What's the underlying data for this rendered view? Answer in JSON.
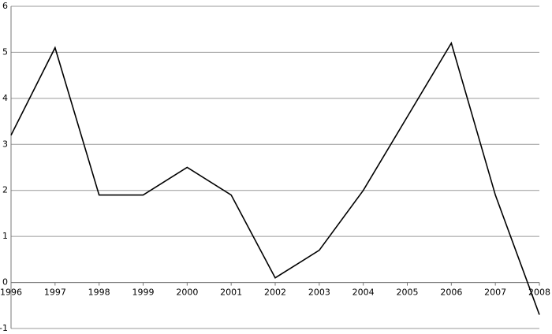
{
  "chart_data": {
    "type": "line",
    "x": [
      1996,
      1997,
      1998,
      1999,
      2000,
      2001,
      2002,
      2003,
      2004,
      2005,
      2006,
      2007,
      2008
    ],
    "series": [
      {
        "color": "#000000",
        "values": [
          3.2,
          5.1,
          1.9,
          1.9,
          2.5,
          1.9,
          0.1,
          0.7,
          2.0,
          3.6,
          5.2,
          1.9,
          -0.7
        ]
      }
    ],
    "xlim": [
      1996,
      2008
    ],
    "ylim": [
      -1,
      6
    ],
    "yticks": [
      -1,
      0,
      1,
      2,
      3,
      4,
      5,
      6
    ],
    "grid": true
  }
}
